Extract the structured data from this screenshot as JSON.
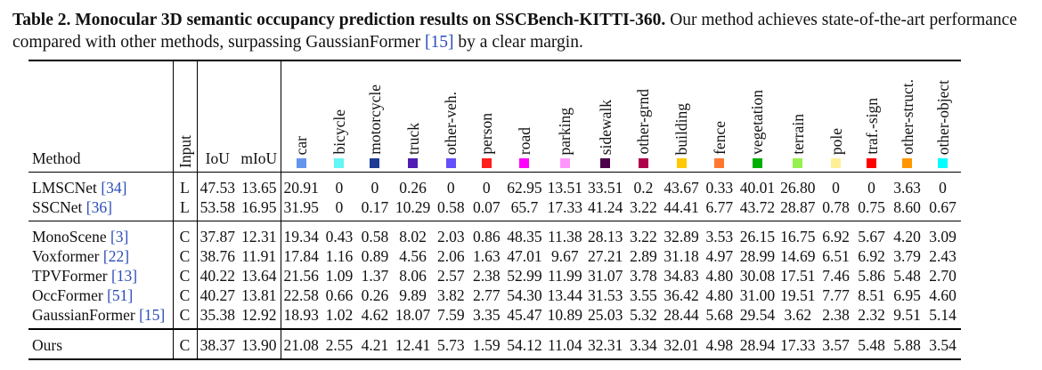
{
  "caption": {
    "label": "Table 2.",
    "title": "Monocular 3D semantic occupancy prediction results on SSCBench-KITTI-360.",
    "text_before_ref": " Our method achieves state-of-the-art performance compared with other methods, surpassing GaussianFormer ",
    "ref": "[15]",
    "text_after_ref": " by a clear margin."
  },
  "header": {
    "method": "Method",
    "input": "Input",
    "iou": "IoU",
    "miou": "mIoU"
  },
  "classes": [
    {
      "name": "car",
      "color": "#6495ed"
    },
    {
      "name": "bicycle",
      "color": "#64f5f5"
    },
    {
      "name": "motorcycle",
      "color": "#1e3c96"
    },
    {
      "name": "truck",
      "color": "#501eb4"
    },
    {
      "name": "other-veh.",
      "color": "#6450fa"
    },
    {
      "name": "person",
      "color": "#ff1e1e"
    },
    {
      "name": "road",
      "color": "#ff00ff"
    },
    {
      "name": "parking",
      "color": "#ff96ff"
    },
    {
      "name": "sidewalk",
      "color": "#4b004b"
    },
    {
      "name": "other-grnd",
      "color": "#af004b"
    },
    {
      "name": "building",
      "color": "#ffc800"
    },
    {
      "name": "fence",
      "color": "#ff7832"
    },
    {
      "name": "vegetation",
      "color": "#00af00"
    },
    {
      "name": "terrain",
      "color": "#96f050"
    },
    {
      "name": "pole",
      "color": "#fff096"
    },
    {
      "name": "traf.-sign",
      "color": "#ff0000"
    },
    {
      "name": "other-struct.",
      "color": "#ff9600"
    },
    {
      "name": "other-object",
      "color": "#00ffff"
    }
  ],
  "groups": [
    [
      {
        "method": "LMSCNet ",
        "ref": "[34]",
        "input": "L",
        "iou": "47.53",
        "miou": "13.65",
        "vals": [
          "20.91",
          "0",
          "0",
          "0.26",
          "0",
          "0",
          "62.95",
          "13.51",
          "33.51",
          "0.2",
          "43.67",
          "0.33",
          "40.01",
          "26.80",
          "0",
          "0",
          "3.63",
          "0"
        ],
        "bold": []
      },
      {
        "method": "SSCNet ",
        "ref": "[36]",
        "input": "L",
        "iou": "53.58",
        "miou": "16.95",
        "vals": [
          "31.95",
          "0",
          "0.17",
          "10.29",
          "0.58",
          "0.07",
          "65.7",
          "17.33",
          "41.24",
          "3.22",
          "44.41",
          "6.77",
          "43.72",
          "28.87",
          "0.78",
          "0.75",
          "8.60",
          "0.67"
        ],
        "bold": []
      }
    ],
    [
      {
        "method": "MonoScene ",
        "ref": "[3]",
        "input": "C",
        "iou": "37.87",
        "miou": "12.31",
        "vals": [
          "19.34",
          "0.43",
          "0.58",
          "8.02",
          "2.03",
          "0.86",
          "48.35",
          "11.38",
          "28.13",
          "3.22",
          "32.89",
          "3.53",
          "26.15",
          "16.75",
          "6.92",
          "5.67",
          "4.20",
          "3.09"
        ],
        "bold": []
      },
      {
        "method": "Voxformer ",
        "ref": "[22]",
        "input": "C",
        "iou": "38.76",
        "miou": "11.91",
        "vals": [
          "17.84",
          "1.16",
          "0.89",
          "4.56",
          "2.06",
          "1.63",
          "47.01",
          "9.67",
          "27.21",
          "2.89",
          "31.18",
          "4.97",
          "28.99",
          "14.69",
          "6.51",
          "6.92",
          "3.79",
          "2.43"
        ],
        "bold": []
      },
      {
        "method": "TPVFormer ",
        "ref": "[13]",
        "input": "C",
        "iou": "40.22",
        "miou": "13.64",
        "vals": [
          "21.56",
          "1.09",
          "1.37",
          "8.06",
          "2.57",
          "2.38",
          "52.99",
          "11.99",
          "31.07",
          "3.78",
          "34.83",
          "4.80",
          "30.08",
          "17.51",
          "7.46",
          "5.86",
          "5.48",
          "2.70"
        ],
        "bold": []
      },
      {
        "method": "OccFormer ",
        "ref": "[51]",
        "input": "C",
        "iou": "40.27",
        "miou": "13.81",
        "vals": [
          "22.58",
          "0.66",
          "0.26",
          "9.89",
          "3.82",
          "2.77",
          "54.30",
          "13.44",
          "31.53",
          "3.55",
          "36.42",
          "4.80",
          "31.00",
          "19.51",
          "7.77",
          "8.51",
          "6.95",
          "4.60"
        ],
        "bold": [
          "iou",
          0,
          6,
          7,
          10,
          12,
          13,
          14,
          15
        ]
      },
      {
        "method": "GaussianFormer ",
        "ref": "[15]",
        "input": "C",
        "iou": "35.38",
        "miou": "12.92",
        "vals": [
          "18.93",
          "1.02",
          "4.62",
          "18.07",
          "7.59",
          "3.35",
          "45.47",
          "10.89",
          "25.03",
          "5.32",
          "28.44",
          "5.68",
          "29.54",
          "3.62",
          "2.38",
          "2.32",
          "9.51",
          "5.14"
        ],
        "bold": [
          2,
          3,
          4,
          5,
          9,
          11,
          16,
          17
        ]
      }
    ],
    [
      {
        "method": "Ours",
        "ref": "",
        "input": "C",
        "iou": "38.37",
        "miou": "13.90",
        "vals": [
          "21.08",
          "2.55",
          "4.21",
          "12.41",
          "5.73",
          "1.59",
          "54.12",
          "11.04",
          "32.31",
          "3.34",
          "32.01",
          "4.98",
          "28.94",
          "17.33",
          "3.57",
          "5.48",
          "5.88",
          "3.54"
        ],
        "bold": [
          "method",
          "miou",
          1,
          8
        ]
      }
    ]
  ]
}
